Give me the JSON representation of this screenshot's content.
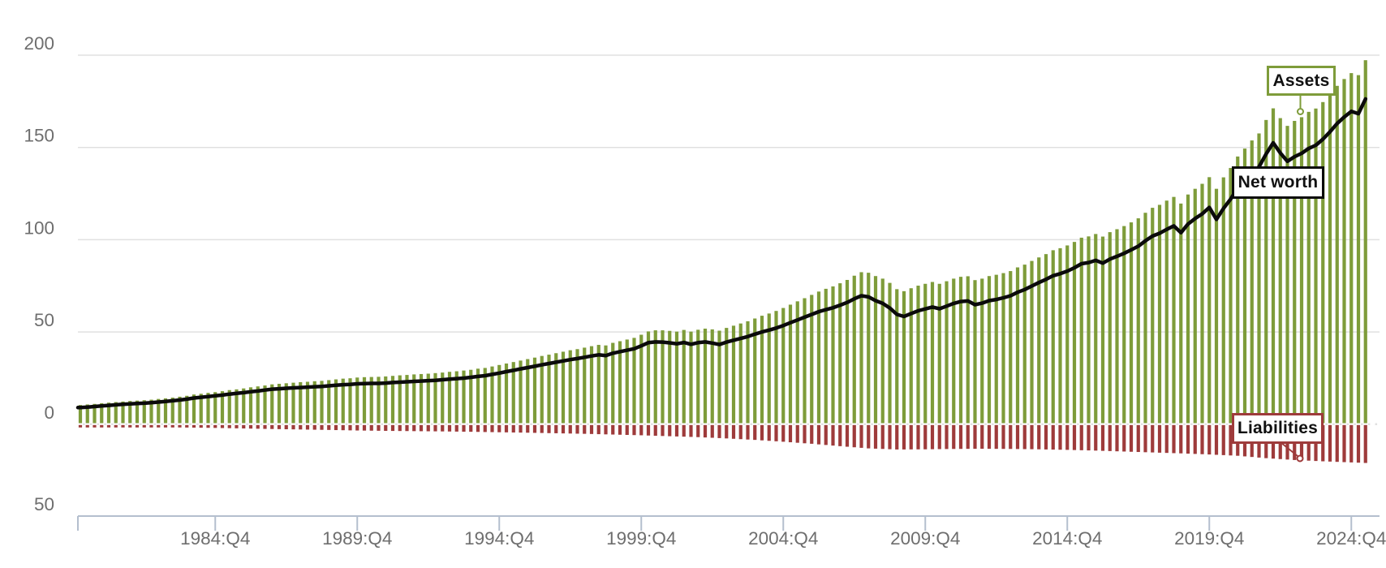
{
  "colors": {
    "background": "#ffffff",
    "gridline": "#e0e0e0",
    "axis": "#b4bfce",
    "tick_text": "#6e6e6e",
    "annotation_text": "#111111"
  },
  "annotations": {
    "assets": {
      "label": "Assets",
      "border_color": "#7e9c3a"
    },
    "net_worth": {
      "label": "Net worth",
      "border_color": "#0b0b0b"
    },
    "liabilities": {
      "label": "Liabilities",
      "border_color": "#9e3b3b"
    }
  },
  "chart_data": {
    "type": "bar+line",
    "x_start": "1980:Q1",
    "x_end": "2025:Q2",
    "frequency": "quarterly",
    "ylim": [
      -50,
      200
    ],
    "grid": "horizontal",
    "y_axis": {
      "ticks": [
        {
          "label": "200",
          "value": 200
        },
        {
          "label": "150",
          "value": 150
        },
        {
          "label": "100",
          "value": 100
        },
        {
          "label": "50",
          "value": 50
        },
        {
          "label": "0",
          "value": 0
        },
        {
          "label": "50",
          "value": -50
        }
      ]
    },
    "x_axis": {
      "ticks": [
        {
          "label": "1984:Q4",
          "q": 19
        },
        {
          "label": "1989:Q4",
          "q": 39
        },
        {
          "label": "1994:Q4",
          "q": 59
        },
        {
          "label": "1999:Q4",
          "q": 79
        },
        {
          "label": "2004:Q4",
          "q": 99
        },
        {
          "label": "2009:Q4",
          "q": 119
        },
        {
          "label": "2014:Q4",
          "q": 139
        },
        {
          "label": "2019:Q4",
          "q": 159
        },
        {
          "label": "2024:Q4",
          "q": 179
        }
      ]
    },
    "series": {
      "assets": {
        "name": "Assets",
        "type": "bar",
        "color": "#7e9c3a",
        "values": [
          10.4,
          10.7,
          11.0,
          11.4,
          11.7,
          12.0,
          12.3,
          12.6,
          12.8,
          13.0,
          13.3,
          13.7,
          14.0,
          14.4,
          14.9,
          15.4,
          16.1,
          16.5,
          17.0,
          17.4,
          17.9,
          18.5,
          18.9,
          19.4,
          20.0,
          20.5,
          21.0,
          21.6,
          21.9,
          22.2,
          22.5,
          22.8,
          23.0,
          23.3,
          23.5,
          23.9,
          24.3,
          24.7,
          24.9,
          25.3,
          25.5,
          25.6,
          25.7,
          25.9,
          26.2,
          26.5,
          26.7,
          27.0,
          27.2,
          27.4,
          27.7,
          28.0,
          28.4,
          28.7,
          29.1,
          29.5,
          30.1,
          30.5,
          31.3,
          32.1,
          32.9,
          33.7,
          34.5,
          35.3,
          36.1,
          37.0,
          37.7,
          38.5,
          39.3,
          40.1,
          40.7,
          41.5,
          42.3,
          43.0,
          42.7,
          44.1,
          45.0,
          45.9,
          46.8,
          48.5,
          50.3,
          50.9,
          50.9,
          50.6,
          50.2,
          51.1,
          50.2,
          51.2,
          51.8,
          51.4,
          50.7,
          52.2,
          53.4,
          54.6,
          55.8,
          57.3,
          58.8,
          60.0,
          61.4,
          63.0,
          64.8,
          66.6,
          68.3,
          70.1,
          71.9,
          73.4,
          74.7,
          76.4,
          78.2,
          80.5,
          82.4,
          82.1,
          80.3,
          78.9,
          76.6,
          73.2,
          72.1,
          73.7,
          75.1,
          76.1,
          77.1,
          76.1,
          77.5,
          78.9,
          79.9,
          80.2,
          78.1,
          78.9,
          80.3,
          81.0,
          81.9,
          83.0,
          85.0,
          86.5,
          88.5,
          90.4,
          92.2,
          94.3,
          95.4,
          96.9,
          98.8,
          101.1,
          101.8,
          103.1,
          101.7,
          104.1,
          105.7,
          107.4,
          109.4,
          111.6,
          114.6,
          117.3,
          118.9,
          121.2,
          123.2,
          119.6,
          124.5,
          127.6,
          130.3,
          133.9,
          127.6,
          133.8,
          138.9,
          145.1,
          149.4,
          153.8,
          157.6,
          164.9,
          171.2,
          165.9,
          161.7,
          164.4,
          166.4,
          169.3,
          171.1,
          174.6,
          178.8,
          183.4,
          187.1,
          190.3,
          189.2,
          197.3
        ]
      },
      "liabilities": {
        "name": "Liabilities",
        "type": "bar",
        "color": "#9e3b3b",
        "plotted_below_zero": true,
        "values": [
          1.38,
          1.4,
          1.43,
          1.45,
          1.48,
          1.5,
          1.53,
          1.55,
          1.57,
          1.6,
          1.62,
          1.65,
          1.69,
          1.72,
          1.76,
          1.8,
          1.85,
          1.9,
          1.95,
          2.0,
          2.08,
          2.15,
          2.23,
          2.3,
          2.38,
          2.45,
          2.53,
          2.6,
          2.66,
          2.73,
          2.79,
          2.85,
          2.91,
          2.98,
          3.04,
          3.1,
          3.18,
          3.25,
          3.33,
          3.4,
          3.45,
          3.5,
          3.55,
          3.6,
          3.64,
          3.68,
          3.71,
          3.75,
          3.79,
          3.83,
          3.86,
          3.9,
          3.95,
          4.0,
          4.05,
          4.1,
          4.16,
          4.23,
          4.29,
          4.35,
          4.41,
          4.48,
          4.54,
          4.6,
          4.68,
          4.75,
          4.83,
          4.9,
          4.98,
          5.05,
          5.13,
          5.2,
          5.3,
          5.4,
          5.5,
          5.6,
          5.7,
          5.8,
          5.9,
          6.0,
          6.13,
          6.25,
          6.38,
          6.5,
          6.63,
          6.75,
          6.88,
          7.0,
          7.18,
          7.35,
          7.53,
          7.7,
          7.9,
          8.1,
          8.3,
          8.5,
          8.75,
          9.0,
          9.25,
          9.5,
          9.78,
          10.05,
          10.33,
          10.6,
          10.93,
          11.25,
          11.58,
          11.9,
          12.2,
          12.5,
          12.8,
          13.1,
          13.25,
          13.4,
          13.55,
          13.7,
          13.68,
          13.65,
          13.63,
          13.6,
          13.55,
          13.5,
          13.45,
          13.4,
          13.38,
          13.35,
          13.33,
          13.3,
          13.33,
          13.35,
          13.38,
          13.4,
          13.45,
          13.5,
          13.55,
          13.6,
          13.68,
          13.75,
          13.83,
          13.9,
          14.0,
          14.1,
          14.2,
          14.3,
          14.43,
          14.55,
          14.68,
          14.8,
          14.93,
          15.05,
          15.18,
          15.3,
          15.43,
          15.55,
          15.68,
          15.8,
          15.95,
          16.1,
          16.25,
          16.4,
          16.58,
          16.75,
          16.93,
          17.1,
          17.43,
          17.75,
          18.08,
          18.4,
          18.65,
          18.9,
          19.15,
          19.4,
          19.58,
          19.75,
          19.93,
          20.1,
          20.25,
          20.4,
          20.55,
          20.7,
          20.85,
          21.0
        ]
      },
      "net_worth": {
        "name": "Net worth",
        "type": "line",
        "color": "#0b0b0b",
        "values": [
          9.0,
          9.3,
          9.6,
          9.9,
          10.2,
          10.5,
          10.8,
          11.0,
          11.2,
          11.4,
          11.7,
          12.0,
          12.3,
          12.7,
          13.1,
          13.6,
          14.2,
          14.6,
          15.0,
          15.4,
          15.8,
          16.3,
          16.7,
          17.1,
          17.6,
          18.0,
          18.5,
          19.0,
          19.2,
          19.5,
          19.7,
          19.9,
          20.1,
          20.3,
          20.5,
          20.8,
          21.1,
          21.4,
          21.6,
          21.9,
          22.0,
          22.1,
          22.1,
          22.3,
          22.6,
          22.8,
          23.0,
          23.2,
          23.4,
          23.6,
          23.8,
          24.1,
          24.4,
          24.7,
          25.0,
          25.4,
          25.9,
          26.3,
          27.0,
          27.7,
          28.5,
          29.2,
          30.0,
          30.7,
          31.4,
          32.2,
          32.9,
          33.6,
          34.3,
          35.0,
          35.6,
          36.3,
          37.0,
          37.6,
          37.2,
          38.5,
          39.3,
          40.1,
          40.9,
          42.5,
          44.2,
          44.6,
          44.5,
          44.1,
          43.6,
          44.3,
          43.3,
          44.2,
          44.6,
          44.0,
          43.2,
          44.5,
          45.5,
          46.5,
          47.5,
          48.8,
          50.0,
          51.0,
          52.1,
          53.5,
          55.0,
          56.5,
          58.0,
          59.5,
          61.0,
          62.1,
          63.1,
          64.5,
          66.0,
          68.0,
          69.6,
          69.0,
          67.0,
          65.5,
          63.0,
          59.5,
          58.4,
          60.0,
          61.5,
          62.5,
          63.5,
          62.6,
          64.0,
          65.5,
          66.5,
          66.8,
          64.8,
          65.6,
          67.0,
          67.6,
          68.5,
          69.6,
          71.5,
          73.0,
          74.9,
          76.8,
          78.5,
          80.5,
          81.6,
          83.0,
          84.8,
          87.0,
          87.6,
          88.8,
          87.3,
          89.5,
          91.0,
          92.6,
          94.5,
          96.5,
          99.4,
          102.0,
          103.5,
          105.6,
          107.5,
          103.8,
          108.5,
          111.5,
          114.0,
          117.5,
          111.0,
          117.0,
          122.0,
          128.0,
          132.0,
          136.0,
          139.5,
          146.5,
          152.5,
          147.0,
          142.5,
          145.0,
          146.8,
          149.5,
          151.2,
          154.5,
          158.5,
          163.0,
          166.5,
          169.6,
          168.3,
          176.3
        ]
      }
    }
  }
}
